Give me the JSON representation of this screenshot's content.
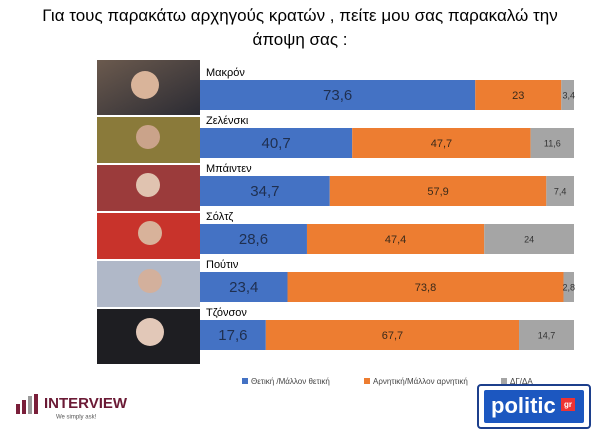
{
  "chart_data": {
    "type": "stacked-bar-horizontal",
    "title": "Για τους παρακάτω αρχηγούς κρατών , πείτε μου σας παρακαλώ την άποψη σας :",
    "categories": [
      "Μακρόν",
      "Ζελένσκι",
      "Μπάιντεν",
      "Σόλτζ",
      "Πούτιν",
      "Τζόνσον"
    ],
    "xlim": [
      0,
      100
    ],
    "series": [
      {
        "name": "Θετική /Μάλλον θετική",
        "color": "#4472c4",
        "values": [
          73.6,
          40.7,
          34.7,
          28.6,
          23.4,
          17.6
        ],
        "value_labels": [
          "73,6",
          "40,7",
          "34,7",
          "28,6",
          "23,4",
          "17,6"
        ]
      },
      {
        "name": "Αρνητική/Μάλλον αρνητική",
        "color": "#ed7d31",
        "values": [
          23,
          47.7,
          57.9,
          47.4,
          73.8,
          67.7
        ],
        "value_labels": [
          "23",
          "47,7",
          "57,9",
          "47,4",
          "73,8",
          "67,7"
        ]
      },
      {
        "name": "ΔΓ/ΔΑ",
        "color": "#a5a5a5",
        "values": [
          3.4,
          11.6,
          7.4,
          24,
          2.8,
          14.7
        ],
        "value_labels": [
          "3,4",
          "11,6",
          "7,4",
          "24",
          "2,8",
          "14,7"
        ]
      }
    ],
    "legend": "bottom"
  },
  "branding": {
    "left": "INTERVIEW",
    "left_tagline": "We simply ask!",
    "right": "politic",
    "right_suffix": "gr"
  }
}
